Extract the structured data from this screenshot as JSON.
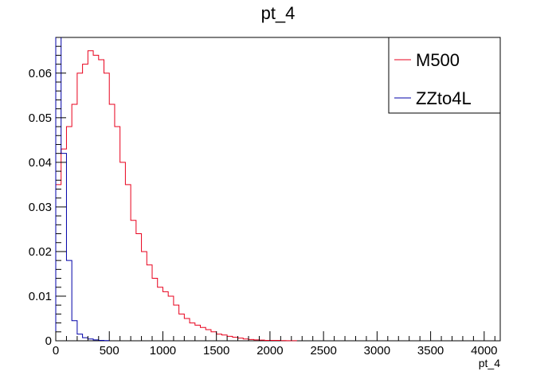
{
  "chart_data": {
    "type": "step-histogram",
    "title": "pt_4",
    "xlabel": "pt_4",
    "ylabel": "",
    "xlim": [
      0,
      4150
    ],
    "ylim": [
      0,
      0.068
    ],
    "bin_width": 50,
    "x_ticks": [
      0,
      500,
      1000,
      1500,
      2000,
      2500,
      3000,
      3500,
      4000
    ],
    "y_ticks": [
      0,
      0.01,
      0.02,
      0.03,
      0.04,
      0.05,
      0.06
    ],
    "x_tick_labels": [
      "0",
      "500",
      "1000",
      "1500",
      "2000",
      "2500",
      "3000",
      "3500",
      "4000"
    ],
    "y_tick_labels": [
      "0",
      "0.01",
      "0.02",
      "0.03",
      "0.04",
      "0.05",
      "0.06"
    ],
    "legend_position": "top-right",
    "series": [
      {
        "name": "M500",
        "color": "#e8001c",
        "x_start": 0,
        "values": [
          0.035,
          0.043,
          0.048,
          0.053,
          0.06,
          0.062,
          0.065,
          0.064,
          0.063,
          0.06,
          0.053,
          0.048,
          0.04,
          0.035,
          0.027,
          0.024,
          0.02,
          0.017,
          0.014,
          0.012,
          0.011,
          0.01,
          0.008,
          0.006,
          0.005,
          0.004,
          0.0035,
          0.003,
          0.0025,
          0.002,
          0.0015,
          0.0013,
          0.001,
          0.0008,
          0.0006,
          0.0004,
          0.0003,
          0.0002,
          0.00015,
          0.0001,
          0.0001,
          8e-05,
          5e-05,
          3e-05,
          2e-05
        ]
      },
      {
        "name": "ZZto4L",
        "color": "#0000a8",
        "x_start": 0,
        "values": [
          0.068,
          0.042,
          0.018,
          0.0045,
          0.0015,
          0.0007,
          0.0004,
          0.0002,
          0.0001,
          5e-05
        ]
      }
    ]
  }
}
